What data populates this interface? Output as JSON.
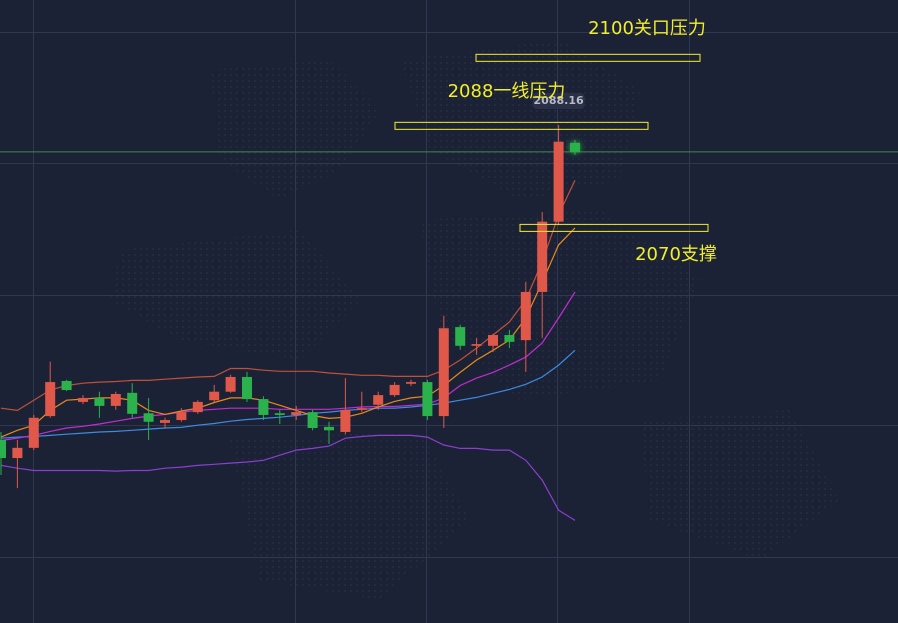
{
  "chart_data": {
    "type": "candlestick",
    "ylim": [
      2000.3,
      2110.2
    ],
    "up_color": "#e0584a",
    "down_color": "#2bb24c",
    "open": [
      2032.6,
      2029.4,
      2031.2,
      2036.8,
      2043.0,
      2039.3,
      2040.0,
      2038.6,
      2040.9,
      2037.3,
      2035.6,
      2036.1,
      2037.5,
      2039.6,
      2041.1,
      2043.7,
      2039.8,
      2037.3,
      2037.0,
      2037.5,
      2034.9,
      2034.0,
      2037.9,
      2038.8,
      2040.5,
      2042.5,
      2042.8,
      2036.8,
      2052.5,
      2049.2,
      2049.2,
      2051.1,
      2050.2,
      2058.7,
      2071.1,
      2085.0
    ],
    "high": [
      2034.0,
      2032.6,
      2037.0,
      2046.4,
      2043.2,
      2040.5,
      2041.1,
      2041.1,
      2042.6,
      2040.0,
      2036.5,
      2038.2,
      2039.6,
      2042.3,
      2044.1,
      2044.6,
      2040.3,
      2037.9,
      2038.6,
      2037.9,
      2035.8,
      2043.5,
      2041.1,
      2041.1,
      2042.8,
      2043.2,
      2043.2,
      2054.5,
      2052.9,
      2050.6,
      2051.3,
      2052.0,
      2060.5,
      2072.8,
      2088.16,
      2085.5
    ],
    "low": [
      2026.4,
      2024.1,
      2030.8,
      2036.5,
      2041.2,
      2038.9,
      2036.5,
      2037.9,
      2036.5,
      2032.6,
      2034.7,
      2035.8,
      2037.2,
      2039.3,
      2040.9,
      2039.3,
      2036.1,
      2035.4,
      2036.1,
      2034.3,
      2031.9,
      2033.6,
      2037.5,
      2037.9,
      2040.2,
      2042.1,
      2036.1,
      2034.7,
      2048.5,
      2047.6,
      2048.1,
      2048.8,
      2044.6,
      2050.6,
      2070.5,
      2082.9
    ],
    "close": [
      2029.4,
      2031.2,
      2036.5,
      2042.8,
      2041.4,
      2040.0,
      2038.6,
      2040.7,
      2037.2,
      2035.8,
      2036.1,
      2037.5,
      2039.3,
      2041.1,
      2043.7,
      2039.8,
      2037.0,
      2037.0,
      2037.5,
      2034.7,
      2034.3,
      2037.9,
      2038.2,
      2040.5,
      2042.3,
      2042.8,
      2036.8,
      2052.3,
      2049.2,
      2049.5,
      2051.1,
      2049.9,
      2058.7,
      2071.1,
      2085.2,
      2083.4
    ],
    "series": [
      {
        "color": "#3d8be0",
        "values": [
          2032.9,
          2033.1,
          2033.2,
          2033.4,
          2033.6,
          2033.8,
          2034.0,
          2034.1,
          2034.3,
          2034.5,
          2034.7,
          2034.8,
          2035.2,
          2035.5,
          2035.9,
          2036.2,
          2036.4,
          2036.6,
          2036.9,
          2037.3,
          2037.5,
          2037.8,
          2038.0,
          2038.2,
          2038.2,
          2038.4,
          2038.7,
          2039.1,
          2039.6,
          2040.1,
          2040.8,
          2041.5,
          2042.4,
          2043.7,
          2045.8,
          2048.4
        ]
      },
      {
        "color": "#c02ed0",
        "values": [
          2032.5,
          2032.9,
          2033.4,
          2034.1,
          2034.7,
          2035.0,
          2035.4,
          2035.9,
          2036.4,
          2036.8,
          2037.1,
          2037.5,
          2037.8,
          2038.0,
          2038.2,
          2038.2,
          2038.2,
          2038.0,
          2038.0,
          2038.0,
          2038.0,
          2038.2,
          2038.4,
          2038.5,
          2038.5,
          2038.7,
          2038.9,
          2040.0,
          2042.2,
          2043.5,
          2044.5,
          2045.8,
          2047.2,
          2049.7,
          2054.1,
          2058.7
        ]
      },
      {
        "color": "#e8891e",
        "values": [
          2033.1,
          2034.3,
          2035.2,
          2037.8,
          2039.6,
          2039.8,
          2040.0,
          2040.0,
          2039.6,
          2037.8,
          2037.1,
          2037.7,
          2038.2,
          2039.2,
          2040.0,
          2040.0,
          2039.6,
          2038.7,
          2037.8,
          2036.9,
          2036.4,
          2036.6,
          2037.3,
          2038.4,
          2039.4,
          2040.0,
          2040.3,
          2042.2,
          2044.5,
          2046.7,
          2048.4,
          2050.2,
          2054.1,
          2060.4,
          2067.0,
          2070.0
        ]
      },
      {
        "color": "#c0503a",
        "values": [
          2038.2,
          2037.8,
          2039.6,
          2041.4,
          2042.2,
          2042.6,
          2042.8,
          2042.9,
          2043.1,
          2043.1,
          2043.3,
          2043.5,
          2043.7,
          2043.8,
          2045.2,
          2045.2,
          2044.9,
          2044.7,
          2044.7,
          2044.7,
          2044.4,
          2044.2,
          2044.0,
          2044.0,
          2043.8,
          2043.8,
          2043.8,
          2044.9,
          2046.7,
          2048.8,
          2051.1,
          2053.4,
          2057.3,
          2064.0,
          2072.3,
          2078.4
        ]
      },
      {
        "color": "#8a3fd0",
        "values": [
          2028.1,
          2027.6,
          2027.2,
          2027.2,
          2027.2,
          2027.2,
          2027.2,
          2027.1,
          2027.2,
          2027.2,
          2027.6,
          2027.8,
          2028.1,
          2028.3,
          2028.5,
          2028.7,
          2029.0,
          2029.9,
          2030.8,
          2031.1,
          2031.5,
          2032.9,
          2033.2,
          2033.4,
          2033.4,
          2033.4,
          2033.1,
          2031.7,
          2031.1,
          2031.1,
          2030.8,
          2030.8,
          2029.0,
          2025.5,
          2020.2,
          2018.4
        ]
      }
    ],
    "annotations": [
      {
        "text": "2100关口压力",
        "value": 2100,
        "color": "#f2ee2a"
      },
      {
        "text": "2088一线压力",
        "value": 2088,
        "color": "#f2ee2a"
      },
      {
        "text": "2070支撑",
        "value": 2070,
        "color": "#f2ee2a"
      }
    ],
    "last_price_line_color": "#3f8a4a"
  }
}
